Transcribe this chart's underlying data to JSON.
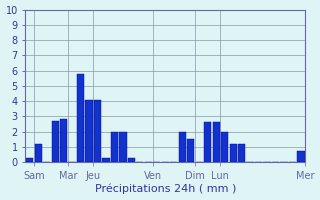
{
  "values": [
    0.3,
    1.2,
    0.0,
    2.7,
    2.8,
    0.0,
    5.8,
    4.1,
    4.1,
    0.3,
    2.0,
    2.0,
    0.3,
    0.0,
    0.0,
    0.0,
    0.0,
    0.0,
    2.0,
    1.5,
    0.0,
    2.6,
    2.6,
    2.0,
    1.2,
    1.2,
    0.0,
    0.0,
    0.0,
    0.0,
    0.0,
    0.0,
    0.7
  ],
  "n_bars": 33,
  "ylim": [
    0,
    10
  ],
  "yticks": [
    0,
    1,
    2,
    3,
    4,
    5,
    6,
    7,
    8,
    9,
    10
  ],
  "day_labels": [
    "Sam",
    "Mar",
    "Jeu",
    "Ven",
    "Dim",
    "Lun",
    "Mer"
  ],
  "day_tick_positions": [
    0.5,
    4.5,
    7.5,
    14.5,
    19.5,
    22.5,
    32.5
  ],
  "xlabel": "Précipitations 24h ( mm )",
  "bar_color": "#1133cc",
  "bar_edge_color": "#0000aa",
  "bg_color": "#dff4f4",
  "grid_major_color": "#8899aa",
  "grid_minor_color": "#aacccc",
  "axis_color": "#6666aa",
  "text_color": "#3333aa",
  "bar_width": 0.85,
  "title_fontsize": 8,
  "tick_fontsize": 7,
  "xlabel_fontsize": 8
}
